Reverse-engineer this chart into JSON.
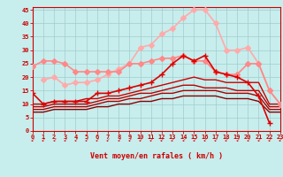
{
  "xlabel": "Vent moyen/en rafales ( km/h )",
  "bg_color": "#c8eded",
  "grid_color": "#a0cccc",
  "xlim": [
    0,
    23
  ],
  "ylim": [
    0,
    46
  ],
  "x_ticks": [
    0,
    1,
    2,
    3,
    4,
    5,
    6,
    7,
    8,
    9,
    10,
    11,
    12,
    13,
    14,
    15,
    16,
    17,
    18,
    19,
    20,
    21,
    22,
    23
  ],
  "y_ticks": [
    0,
    5,
    10,
    15,
    20,
    25,
    30,
    35,
    40,
    45
  ],
  "lines": [
    {
      "comment": "lightest pink - highest arc, diamond markers",
      "x": [
        1,
        2,
        3,
        4,
        5,
        6,
        7,
        8,
        9,
        10,
        11,
        12,
        13,
        14,
        15,
        16,
        17,
        18,
        19,
        20,
        21,
        22,
        23
      ],
      "y": [
        19,
        20,
        17,
        18,
        18,
        19,
        21,
        23,
        25,
        31,
        32,
        36,
        38,
        42,
        45,
        45,
        40,
        30,
        30,
        31,
        25,
        15,
        10
      ],
      "color": "#ffaaaa",
      "lw": 1.2,
      "marker": "D",
      "ms": 3
    },
    {
      "comment": "medium pink - wide arc, diamond markers",
      "x": [
        0,
        1,
        2,
        3,
        4,
        5,
        6,
        7,
        8,
        9,
        10,
        11,
        12,
        13,
        14,
        15,
        16,
        17,
        18,
        19,
        20,
        21,
        22,
        23
      ],
      "y": [
        24,
        26,
        26,
        25,
        22,
        22,
        22,
        22,
        22,
        25,
        25,
        26,
        27,
        27,
        28,
        26,
        26,
        22,
        21,
        21,
        25,
        25,
        15,
        10
      ],
      "color": "#ff8888",
      "lw": 1.2,
      "marker": "D",
      "ms": 3
    },
    {
      "comment": "bright red + markers - middle line",
      "x": [
        0,
        1,
        2,
        3,
        4,
        5,
        6,
        7,
        8,
        9,
        10,
        11,
        12,
        13,
        14,
        15,
        16,
        17,
        18,
        19,
        20,
        21,
        22
      ],
      "y": [
        14,
        10,
        11,
        11,
        11,
        11,
        14,
        14,
        15,
        16,
        17,
        18,
        21,
        25,
        28,
        26,
        28,
        22,
        21,
        20,
        18,
        13,
        3
      ],
      "color": "#dd0000",
      "lw": 1.2,
      "marker": "+",
      "ms": 5
    },
    {
      "comment": "dark red line 1 - starts x=0 flat rising",
      "x": [
        0,
        1,
        2,
        3,
        4,
        5,
        6,
        7,
        8,
        9,
        10,
        11,
        12,
        13,
        14,
        15,
        16,
        17,
        18,
        19,
        20,
        21,
        22,
        23
      ],
      "y": [
        10,
        10,
        11,
        11,
        11,
        12,
        12,
        13,
        13,
        14,
        15,
        16,
        17,
        18,
        19,
        20,
        19,
        19,
        18,
        18,
        18,
        18,
        10,
        10
      ],
      "color": "#cc0000",
      "lw": 1.0,
      "marker": null,
      "ms": 0
    },
    {
      "comment": "dark red line 2",
      "x": [
        0,
        1,
        2,
        3,
        4,
        5,
        6,
        7,
        8,
        9,
        10,
        11,
        12,
        13,
        14,
        15,
        16,
        17,
        18,
        19,
        20,
        21,
        22,
        23
      ],
      "y": [
        9,
        9,
        10,
        10,
        10,
        10,
        11,
        12,
        12,
        13,
        14,
        14,
        15,
        16,
        17,
        17,
        16,
        16,
        16,
        15,
        15,
        15,
        9,
        9
      ],
      "color": "#bb0000",
      "lw": 1.0,
      "marker": null,
      "ms": 0
    },
    {
      "comment": "dark red line 3",
      "x": [
        0,
        1,
        2,
        3,
        4,
        5,
        6,
        7,
        8,
        9,
        10,
        11,
        12,
        13,
        14,
        15,
        16,
        17,
        18,
        19,
        20,
        21,
        22,
        23
      ],
      "y": [
        8,
        8,
        9,
        9,
        9,
        9,
        10,
        11,
        11,
        12,
        12,
        13,
        14,
        14,
        15,
        15,
        15,
        15,
        14,
        14,
        14,
        13,
        8,
        8
      ],
      "color": "#aa0000",
      "lw": 1.0,
      "marker": null,
      "ms": 0
    },
    {
      "comment": "darkest red line 4 - lowest",
      "x": [
        0,
        1,
        2,
        3,
        4,
        5,
        6,
        7,
        8,
        9,
        10,
        11,
        12,
        13,
        14,
        15,
        16,
        17,
        18,
        19,
        20,
        21,
        22,
        23
      ],
      "y": [
        7,
        7,
        8,
        8,
        8,
        8,
        9,
        9,
        10,
        10,
        11,
        11,
        12,
        12,
        13,
        13,
        13,
        13,
        12,
        12,
        12,
        11,
        7,
        7
      ],
      "color": "#880000",
      "lw": 1.0,
      "marker": null,
      "ms": 0
    }
  ],
  "arrow_color": "#cc0000",
  "tick_color": "#cc0000",
  "tick_fontsize": 5,
  "xlabel_fontsize": 6
}
